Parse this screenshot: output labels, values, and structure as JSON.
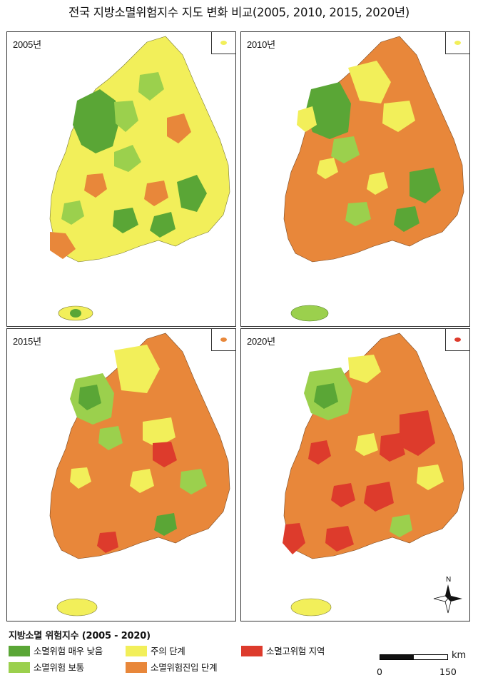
{
  "title": "전국 지방소멸위험지수 지도 변화 비교(2005, 2010, 2015, 2020년)",
  "panels": [
    {
      "year": "2005년",
      "dokdo_color": "#f2ef5a",
      "jeju_color": "#f2ef5a"
    },
    {
      "year": "2010년",
      "dokdo_color": "#f2ef5a",
      "jeju_color": "#9bd04d"
    },
    {
      "year": "2015년",
      "dokdo_color": "#e8873a",
      "jeju_color": "#f2ef5a"
    },
    {
      "year": "2020년",
      "dokdo_color": "#dd3b2c",
      "jeju_color": "#f2ef5a"
    }
  ],
  "legend": {
    "title": "지방소멸 위험지수 (2005 - 2020)",
    "items": [
      {
        "label": "소멸위험 매우 낮음",
        "color": "#5aa636"
      },
      {
        "label": "소멸위험 보통",
        "color": "#9bd04d"
      },
      {
        "label": "주의 단계",
        "color": "#f2ef5a"
      },
      {
        "label": "소멸위험진입 단계",
        "color": "#e8873a"
      },
      {
        "label": "소멸고위험 지역",
        "color": "#dd3b2c"
      }
    ]
  },
  "scale": {
    "unit": "km",
    "min": "0",
    "max": "150"
  },
  "north": "N"
}
